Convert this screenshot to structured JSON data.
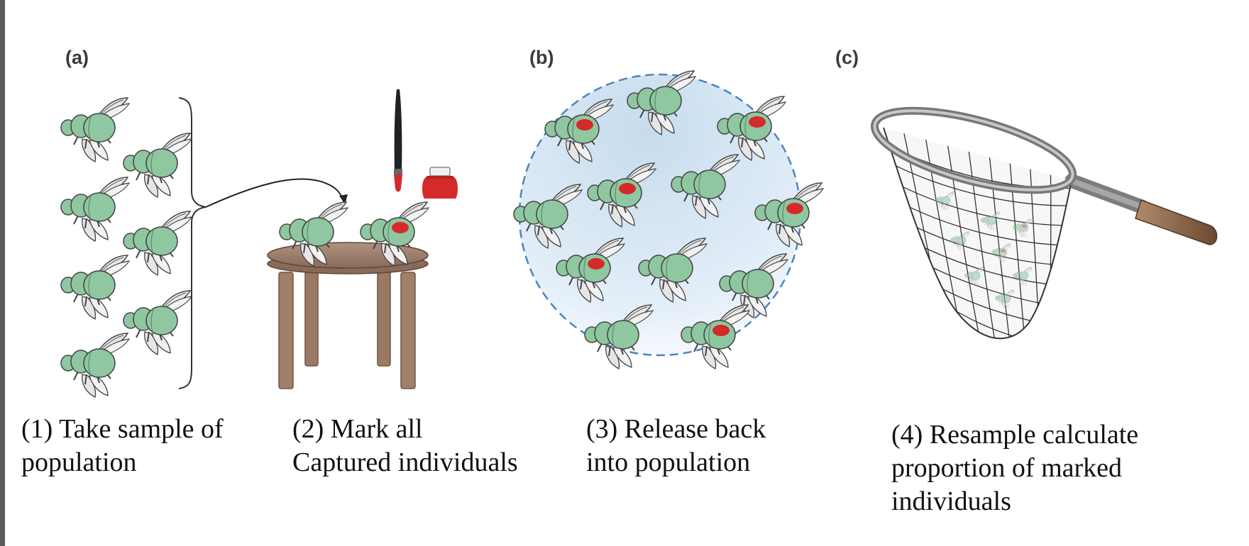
{
  "panels": {
    "a": {
      "label": "(a)"
    },
    "b": {
      "label": "(b)"
    },
    "c": {
      "label": "(c)"
    }
  },
  "captions": {
    "step1": {
      "line1": "(1) Take sample of",
      "line2": "population"
    },
    "step2": {
      "line1": "(2) Mark all",
      "line2": "Captured individuals"
    },
    "step3": {
      "line1": "(3) Release back",
      "line2": "into population"
    },
    "step4": {
      "line1": "(4) Resample calculate",
      "line2": "proportion of marked",
      "line3": "individuals"
    }
  },
  "colors": {
    "fly_body": "#8fc7a0",
    "mark": "#d42a2a",
    "table": "#a08068",
    "circle_fill": "#cfe2f1",
    "net_handle": "#8a6448"
  },
  "icons": {
    "fly": "fly-icon",
    "marked_fly": "marked-fly-icon",
    "brush": "paintbrush-icon",
    "ink": "ink-pot-icon",
    "table": "table-icon",
    "net": "butterfly-net-icon"
  }
}
